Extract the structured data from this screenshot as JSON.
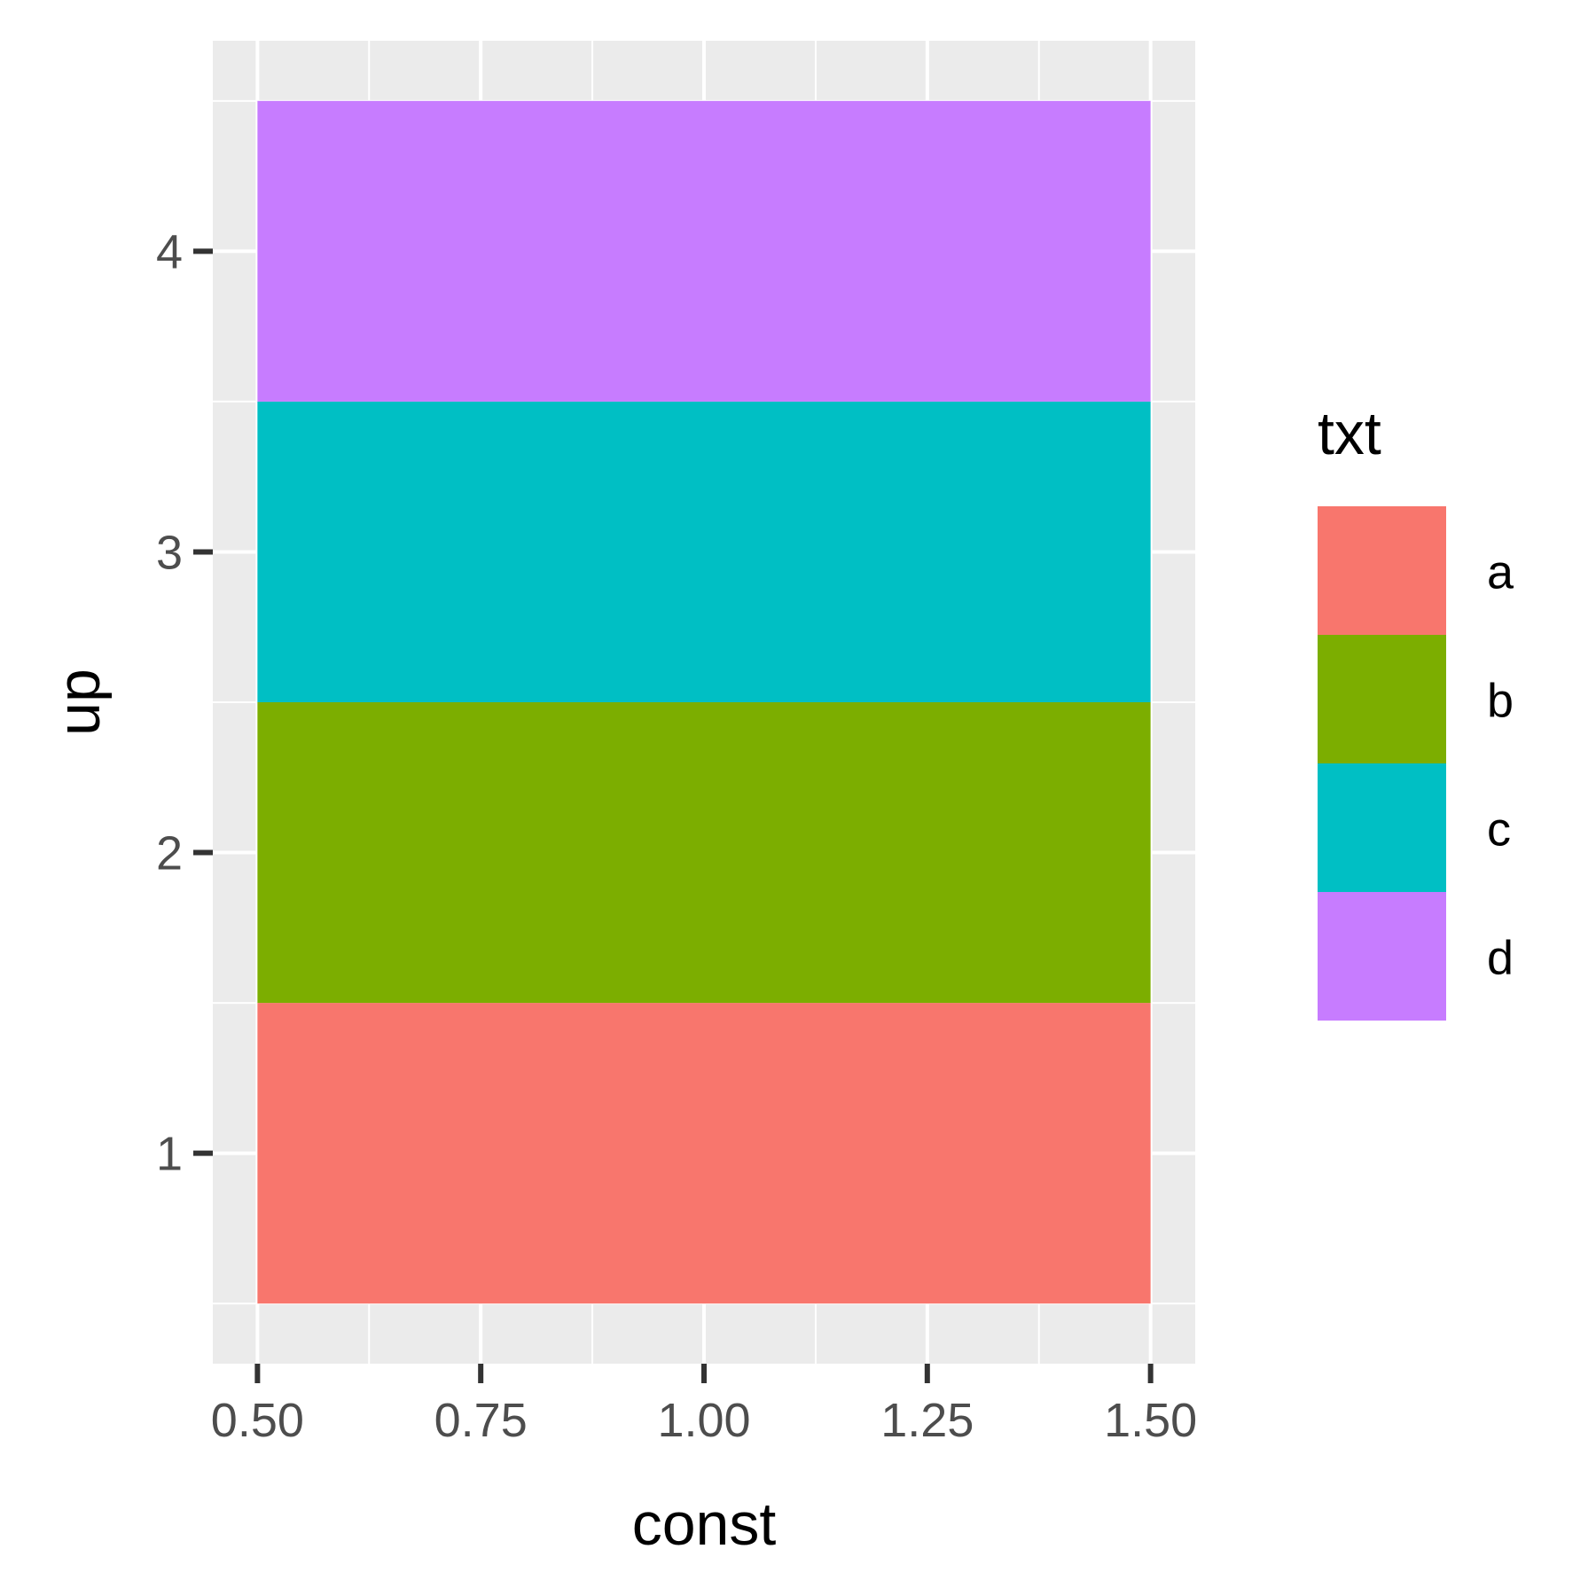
{
  "chart_data": {
    "type": "bar",
    "orientation": "horizontal-stacked-tiles",
    "xlabel": "const",
    "ylabel": "up",
    "xlim": [
      0.45,
      1.55
    ],
    "ylim": [
      0.3,
      4.7
    ],
    "x_ticks": [
      {
        "value": 0.5,
        "label": "0.50"
      },
      {
        "value": 0.75,
        "label": "0.75"
      },
      {
        "value": 1.0,
        "label": "1.00"
      },
      {
        "value": 1.25,
        "label": "1.25"
      },
      {
        "value": 1.5,
        "label": "1.50"
      }
    ],
    "y_ticks": [
      {
        "value": 1,
        "label": "1"
      },
      {
        "value": 2,
        "label": "2"
      },
      {
        "value": 3,
        "label": "3"
      },
      {
        "value": 4,
        "label": "4"
      }
    ],
    "bars": [
      {
        "up": 1,
        "const_min": 0.5,
        "const_max": 1.5,
        "txt": "a",
        "color": "#F8766D"
      },
      {
        "up": 2,
        "const_min": 0.5,
        "const_max": 1.5,
        "txt": "b",
        "color": "#7CAE00"
      },
      {
        "up": 3,
        "const_min": 0.5,
        "const_max": 1.5,
        "txt": "c",
        "color": "#00BFC4"
      },
      {
        "up": 4,
        "const_min": 0.5,
        "const_max": 1.5,
        "txt": "d",
        "color": "#C77CFF"
      }
    ],
    "legend": {
      "title": "txt",
      "position": "right",
      "entries": [
        {
          "label": "a",
          "color": "#F8766D"
        },
        {
          "label": "b",
          "color": "#7CAE00"
        },
        {
          "label": "c",
          "color": "#00BFC4"
        },
        {
          "label": "d",
          "color": "#C77CFF"
        }
      ]
    },
    "grid": true,
    "panel_background": "#EBEBEB",
    "grid_color": "#FFFFFF"
  }
}
